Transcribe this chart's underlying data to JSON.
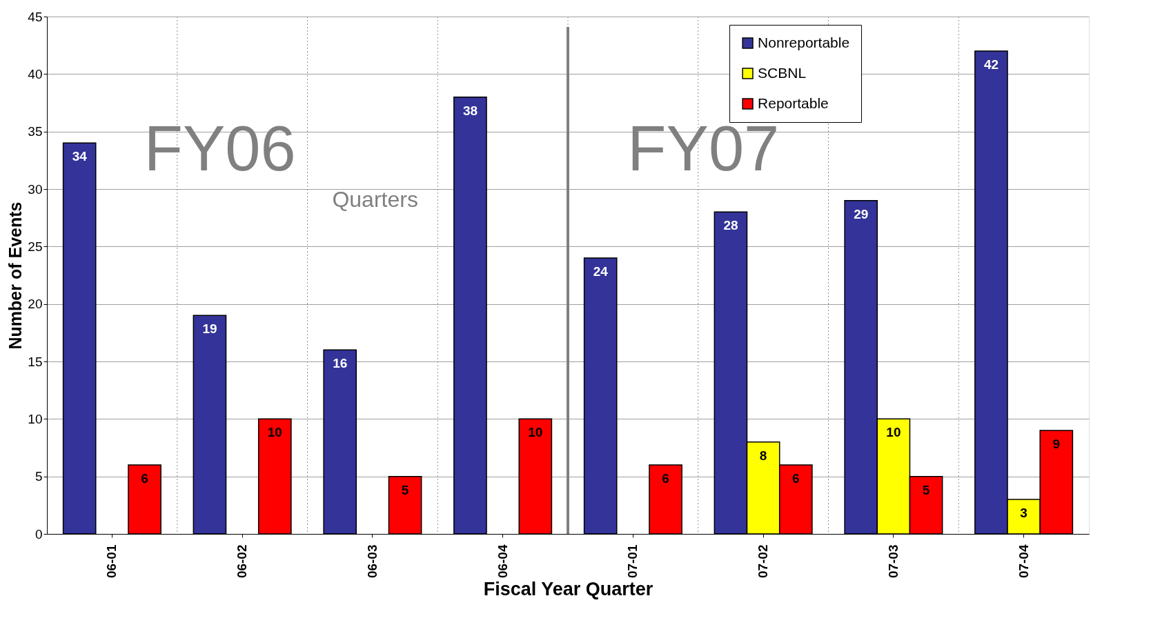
{
  "chart_data": {
    "type": "bar",
    "xlabel": "Fiscal Year Quarter",
    "ylabel": "Number of Events",
    "categories": [
      "06-01",
      "06-02",
      "06-03",
      "06-04",
      "07-01",
      "07-02",
      "07-03",
      "07-04"
    ],
    "series": [
      {
        "name": "Nonreportable",
        "color": "#333399",
        "values": [
          34,
          19,
          16,
          38,
          24,
          28,
          29,
          42
        ]
      },
      {
        "name": "SCBNL",
        "color": "#ffff00",
        "values": [
          null,
          null,
          null,
          null,
          null,
          8,
          10,
          3
        ]
      },
      {
        "name": "Reportable",
        "color": "#ff0000",
        "values": [
          6,
          10,
          5,
          10,
          6,
          6,
          5,
          9
        ]
      }
    ],
    "ylim": [
      0,
      45
    ],
    "yticks": [
      0,
      5,
      10,
      15,
      20,
      25,
      30,
      35,
      40,
      45
    ],
    "ref_lines": [
      {
        "axis": "x",
        "value": "07-01",
        "color": "#808080"
      }
    ],
    "annotations": [
      "FY06",
      "FY07",
      "Quarters"
    ],
    "data_labels": true,
    "grid": true,
    "legend": "top right"
  }
}
